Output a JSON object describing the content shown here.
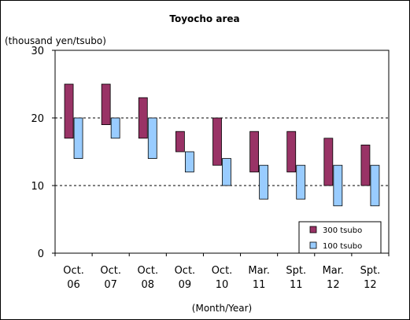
{
  "chart_data": {
    "type": "bar",
    "title": "Toyocho area",
    "ylabel": "(thousand yen/tsubo)",
    "xlabel": "(Month/Year)",
    "ylim": [
      0,
      30
    ],
    "yticks": [
      0,
      10,
      20,
      30
    ],
    "grid": "dashed horizontal at 10 and 20",
    "legend_position": "bottom-right",
    "categories": [
      [
        "Oct.",
        "06"
      ],
      [
        "Oct.",
        "07"
      ],
      [
        "Oct.",
        "08"
      ],
      [
        "Oct.",
        "09"
      ],
      [
        "Oct.",
        "10"
      ],
      [
        "Mar.",
        "11"
      ],
      [
        "Spt.",
        "11"
      ],
      [
        "Mar.",
        "12"
      ],
      [
        "Spt.",
        "12"
      ]
    ],
    "series": [
      {
        "name": "300 tsubo",
        "color": "#993366",
        "ranges": [
          [
            17,
            25
          ],
          [
            19,
            25
          ],
          [
            17,
            23
          ],
          [
            15,
            18
          ],
          [
            13,
            20
          ],
          [
            12,
            18
          ],
          [
            12,
            18
          ],
          [
            10,
            17
          ],
          [
            10,
            16
          ]
        ]
      },
      {
        "name": "100 tsubo",
        "color": "#99ccff",
        "ranges": [
          [
            14,
            20
          ],
          [
            17,
            20
          ],
          [
            14,
            20
          ],
          [
            12,
            15
          ],
          [
            10,
            14
          ],
          [
            8,
            13
          ],
          [
            8,
            13
          ],
          [
            7,
            13
          ],
          [
            7,
            13
          ]
        ]
      }
    ]
  }
}
